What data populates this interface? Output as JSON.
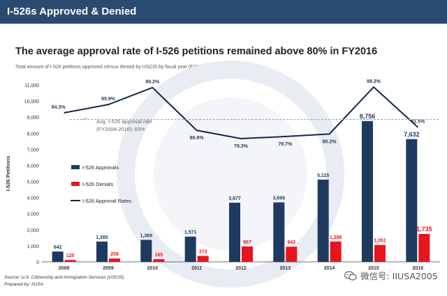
{
  "header": {
    "title": "I-526s Approved & Denied"
  },
  "chart_data": {
    "type": "bar",
    "title": "The average approval rate of I-526 petitions remained above 80% in FY2016",
    "subtitle": "Total amount of I-526 petitions approved versus denied by USCIS by fiscal year (FY2008-2016)",
    "ylabel": "I-526 Petitions",
    "xlabel": "",
    "ylim": [
      0,
      11000
    ],
    "yticks": [
      0,
      1000,
      2000,
      3000,
      4000,
      5000,
      6000,
      7000,
      8000,
      9000,
      10000,
      11000
    ],
    "ytick_labels": [
      "0",
      "1,000",
      "2,000",
      "3,000",
      "4,000",
      "5,000",
      "6,000",
      "7,000",
      "8,000",
      "9,000",
      "10,000",
      "11,000"
    ],
    "categories": [
      "2008",
      "2009",
      "2010",
      "2011",
      "2012",
      "2013",
      "2014",
      "2015",
      "2016"
    ],
    "series": [
      {
        "name": "I-526 Approvals",
        "values": [
          642,
          1265,
          1369,
          1571,
          3677,
          3699,
          5115,
          8756,
          7632
        ],
        "labels": [
          "642",
          "1,265",
          "1,369",
          "1,571",
          "3,677",
          "3,699",
          "5,115",
          "8,756",
          "7,632"
        ],
        "color": "#1f3a5f"
      },
      {
        "name": "I-526 Denials",
        "values": [
          120,
          208,
          165,
          372,
          957,
          943,
          1266,
          1051,
          1735
        ],
        "labels": [
          "120",
          "208",
          "165",
          "372",
          "957",
          "943",
          "1,266",
          "1,051",
          "1,735"
        ],
        "color": "#e8141e"
      }
    ],
    "line_series": {
      "name": "I-526 Approval Rates",
      "values": [
        84.3,
        85.9,
        89.2,
        80.9,
        79.3,
        79.7,
        80.2,
        89.3,
        81.5
      ],
      "labels": [
        "84.3%",
        "85.9%",
        "89.2%",
        "80.9%",
        "79.3%",
        "79.7%",
        "80.2%",
        "89.3%",
        "81.5%"
      ],
      "color": "#14284a"
    },
    "average": {
      "value": 83,
      "label_line1": "Avg. I-526 approval rate",
      "label_line2": "(FY2008-2016): 83%"
    },
    "legend": "left-middle",
    "grid": false
  },
  "footer": {
    "source": "Source: U.S. Citizenship and Immigration Services (USCIS)",
    "prepared": "Prepared by: IIUSA"
  },
  "watermark": {
    "text": "微信号: IIUSA2005",
    "icon": "wechat-icon"
  }
}
